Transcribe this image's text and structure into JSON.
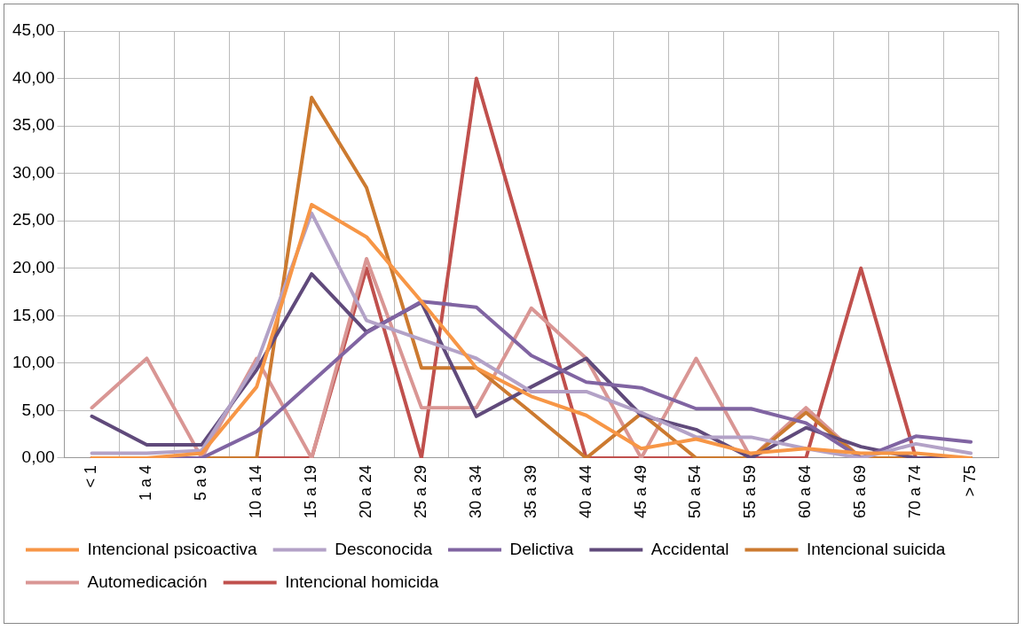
{
  "chart_data": {
    "type": "line",
    "categories": [
      "< 1",
      "1 a 4",
      "5 a 9",
      "10 a 14",
      "15 a 19",
      "20 a 24",
      "25 a 29",
      "30 a 34",
      "35 a 39",
      "40 a 44",
      "45 a 49",
      "50 a 54",
      "55 a 59",
      "60 a 64",
      "65 a 69",
      "70 a 74",
      "> 75"
    ],
    "series": [
      {
        "name": "Intencional psicoactiva",
        "color": "#f79646",
        "values": [
          0,
          0,
          0.5,
          7.5,
          26.7,
          23.3,
          16.5,
          9.5,
          6.5,
          4.5,
          1,
          2,
          0.5,
          1,
          0.5,
          0.5,
          0
        ]
      },
      {
        "name": "Desconocida",
        "color": "#b3a2c7",
        "values": [
          0.5,
          0.5,
          0.8,
          10,
          25.8,
          14.5,
          12.5,
          10.5,
          7,
          7,
          4.8,
          2.2,
          2.2,
          1,
          0,
          1.5,
          0.5
        ]
      },
      {
        "name": "Delictiva",
        "color": "#8064a2",
        "values": [
          0,
          0,
          0,
          2.8,
          8,
          13.2,
          16.5,
          15.9,
          10.8,
          8,
          7.4,
          5.2,
          5.2,
          3.7,
          0,
          2.3,
          1.7
        ]
      },
      {
        "name": "Accidental",
        "color": "#604a7b",
        "values": [
          4.4,
          1.4,
          1.4,
          9.3,
          19.4,
          13.3,
          16.4,
          4.4,
          7.5,
          10.5,
          4.5,
          3,
          0,
          3.2,
          1.2,
          0,
          0
        ]
      },
      {
        "name": "Intencional suicida",
        "color": "#cc7a30",
        "values": [
          0,
          0,
          0,
          0,
          38,
          28.5,
          9.5,
          9.5,
          4.8,
          0,
          4.7,
          0,
          0,
          4.8,
          0,
          0,
          0
        ]
      },
      {
        "name": "Automedicación",
        "color": "#d99694",
        "values": [
          5.3,
          10.5,
          0,
          10.5,
          0,
          21,
          5.3,
          5.3,
          15.8,
          10.5,
          0,
          10.5,
          0,
          5.3,
          0,
          0,
          0
        ]
      },
      {
        "name": "Intencional homicida",
        "color": "#c0504d",
        "values": [
          0,
          0,
          0,
          0,
          0,
          20,
          0,
          40,
          20,
          0,
          0,
          0,
          0,
          0,
          20,
          0,
          0
        ]
      }
    ],
    "ylim": [
      0,
      45
    ],
    "yticks": [
      {
        "value": 0,
        "label": "0,00"
      },
      {
        "value": 5,
        "label": "5,00"
      },
      {
        "value": 10,
        "label": "10,00"
      },
      {
        "value": 15,
        "label": "15,00"
      },
      {
        "value": 20,
        "label": "20,00"
      },
      {
        "value": 25,
        "label": "25,00"
      },
      {
        "value": 30,
        "label": "30,00"
      },
      {
        "value": 35,
        "label": "35,00"
      },
      {
        "value": 40,
        "label": "40,00"
      },
      {
        "value": 45,
        "label": "45,00"
      }
    ],
    "grid": true,
    "legend": "bottom",
    "marker": "none",
    "line_style": "solid"
  }
}
